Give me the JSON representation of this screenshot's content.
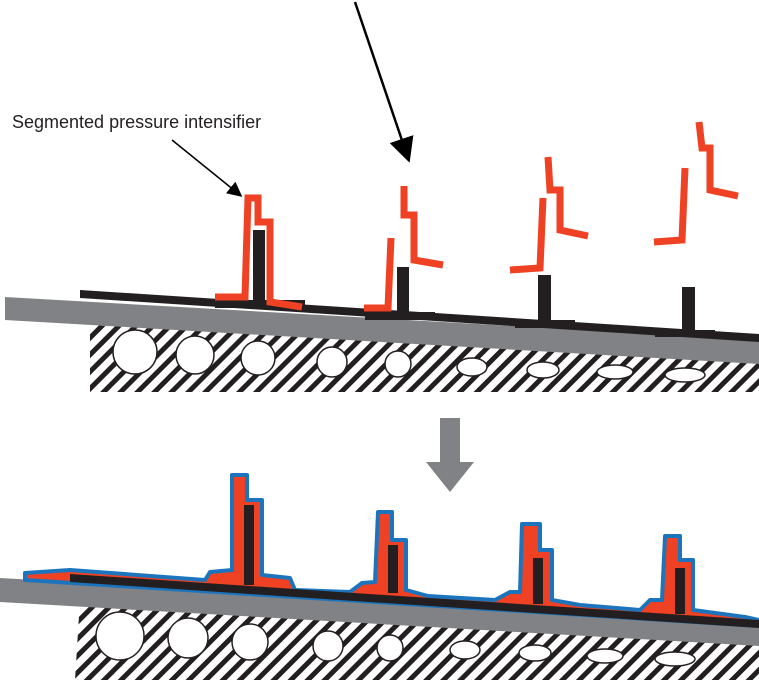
{
  "label": "Segmented pressure intensifier"
}
